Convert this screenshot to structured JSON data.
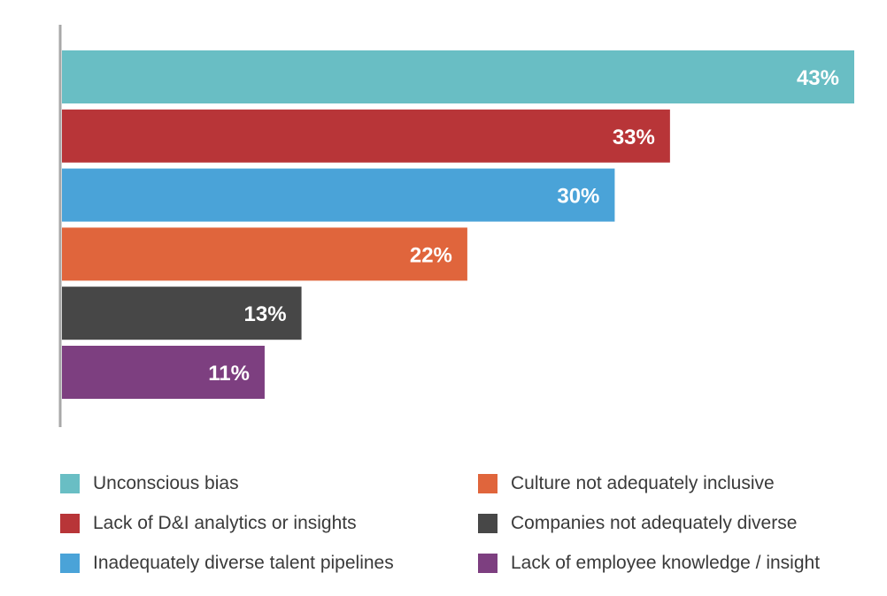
{
  "chart_data": {
    "type": "bar",
    "orientation": "horizontal",
    "categories": [
      "Unconscious bias",
      "Lack of D&I analytics or insights",
      "Inadequately diverse talent pipelines",
      "Culture not adequately inclusive",
      "Companies not adequately diverse",
      "Lack of employee knowledge / insight"
    ],
    "values": [
      43,
      33,
      30,
      22,
      13,
      11
    ],
    "value_labels": [
      "43%",
      "33%",
      "30%",
      "22%",
      "13%",
      "11%"
    ],
    "colors": [
      "#69bec4",
      "#b83538",
      "#4aa3d8",
      "#e0653c",
      "#474747",
      "#7d3f80"
    ],
    "xlim": [
      0,
      43
    ],
    "grid": false,
    "legend_position": "bottom"
  }
}
